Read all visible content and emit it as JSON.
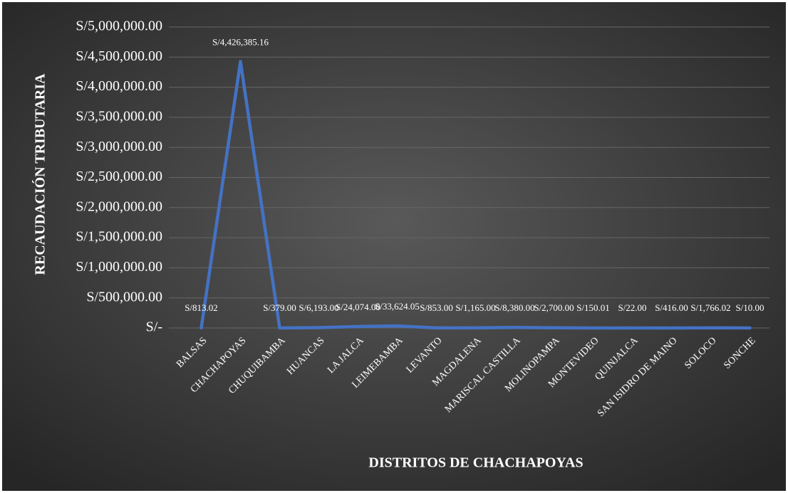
{
  "chart_data": {
    "type": "line",
    "x_label": "DISTRITOS DE CHACHAPOYAS",
    "y_label": "RECAUDACIÓN TRIBUTARIA",
    "categories": [
      "BALSAS",
      "CHACHAPOYAS",
      "CHUQUIBAMBA",
      "HUANCAS",
      "LA JALCA",
      "LEIMEBAMBA",
      "LEVANTO",
      "MAGDALENA",
      "MARISCAL CASTILLA",
      "MOLINOPAMPA",
      "MONTEVIDEO",
      "QUINJALCA",
      "SAN ISIDRO DE MAINO",
      "SOLOCO",
      "SONCHE"
    ],
    "values": [
      813.02,
      4426385.16,
      379.0,
      6193.0,
      24074.0,
      33624.05,
      853.0,
      1165.0,
      8380.0,
      2700.0,
      150.01,
      22.0,
      416.0,
      1766.02,
      10.0
    ],
    "value_labels": [
      "S/813.02",
      "S/4,426,385.16",
      "S/379.00",
      "S/6,193.00",
      "S/24,074.00",
      "S/33,624.05",
      "S/853.00",
      "S/1,165.00",
      "S/8,380.00",
      "S/2,700.00",
      "S/150.01",
      "S/22.00",
      "S/416.00",
      "S/1,766.02",
      "S/10.00"
    ],
    "color": "#4472c4",
    "ylim": [
      0,
      5000000
    ],
    "yticks": [
      {
        "value": 0,
        "label": "S/-"
      },
      {
        "value": 500000,
        "label": "S/500,000.00"
      },
      {
        "value": 1000000,
        "label": "S/1,000,000.00"
      },
      {
        "value": 1500000,
        "label": "S/1,500,000.00"
      },
      {
        "value": 2000000,
        "label": "S/2,000,000.00"
      },
      {
        "value": 2500000,
        "label": "S/2,500,000.00"
      },
      {
        "value": 3000000,
        "label": "S/3,000,000.00"
      },
      {
        "value": 3500000,
        "label": "S/3,500,000.00"
      },
      {
        "value": 4000000,
        "label": "S/4,000,000.00"
      },
      {
        "value": 4500000,
        "label": "S/4,500,000.00"
      },
      {
        "value": 5000000,
        "label": "S/5,000,000.00"
      }
    ],
    "grid": true
  }
}
